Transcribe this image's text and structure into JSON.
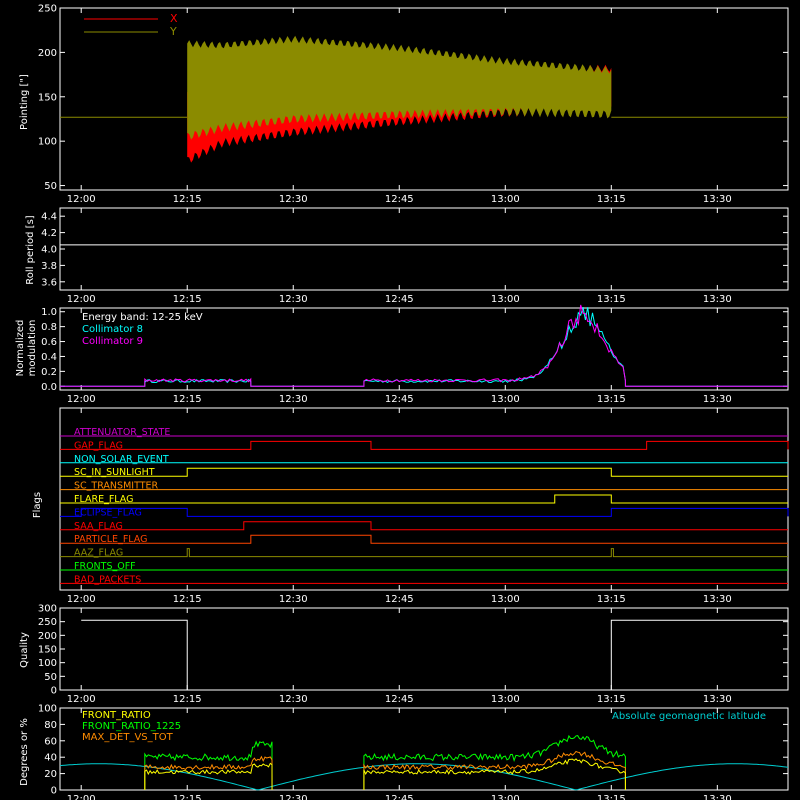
{
  "time_ticks": [
    "12:00",
    "12:15",
    "12:30",
    "12:45",
    "13:00",
    "13:15",
    "13:30"
  ],
  "colors": {
    "axis": "#ffffff",
    "red": "#ff0000",
    "olive": "#8b8b00",
    "cyan": "#00ffff",
    "magenta": "#ff00ff",
    "green": "#00ff00",
    "yellow": "#ffff00",
    "orange": "#ff8c00",
    "blue": "#0000ff",
    "teal": "#00ced1"
  },
  "chart_data": [
    {
      "id": "pointing",
      "type": "line",
      "ylabel": "Pointing [\"]",
      "ylim": [
        45,
        250
      ],
      "yticks": [
        50,
        100,
        150,
        200,
        250
      ],
      "legend_position": "top-left",
      "series": [
        {
          "name": "X",
          "color": "#ff0000",
          "baseline": 127,
          "active_window": [
            "12:15",
            "13:15"
          ],
          "envelope_time": [
            "12:15",
            "12:20",
            "12:30",
            "12:45",
            "13:00",
            "13:15"
          ],
          "envelope_low": [
            78,
            98,
            110,
            122,
            132,
            135
          ],
          "envelope_high": [
            155,
            160,
            170,
            178,
            182,
            182
          ]
        },
        {
          "name": "Y",
          "color": "#8b8b00",
          "baseline": 127,
          "active_window": [
            "12:15",
            "13:15"
          ],
          "envelope_time": [
            "12:15",
            "12:20",
            "12:30",
            "12:45",
            "13:00",
            "13:15"
          ],
          "envelope_low": [
            105,
            115,
            125,
            130,
            133,
            130
          ],
          "envelope_high": [
            210,
            208,
            215,
            205,
            190,
            180
          ]
        }
      ]
    },
    {
      "id": "roll",
      "type": "line",
      "ylabel": "Roll period [s]",
      "ylim": [
        3.5,
        4.5
      ],
      "yticks": [
        3.6,
        3.8,
        4.0,
        4.2,
        4.4
      ],
      "series": [
        {
          "name": "",
          "color": "#ffffff",
          "value": 4.05
        }
      ]
    },
    {
      "id": "modulation",
      "type": "line",
      "ylabel_lines": [
        "Normalized",
        "modulation"
      ],
      "ylim": [
        -0.05,
        1.05
      ],
      "yticks": [
        0.0,
        0.2,
        0.4,
        0.6,
        0.8,
        1.0
      ],
      "annotation": "Energy band: 12-25 keV",
      "legend_position": "top-left",
      "series": [
        {
          "name": "Collimator 8",
          "color": "#00ffff"
        },
        {
          "name": "Collimator 9",
          "color": "#ff00ff"
        }
      ],
      "active_windows": [
        [
          "12:09",
          "12:24"
        ],
        [
          "12:40",
          "13:17"
        ]
      ],
      "base_level": 0.07,
      "peak": {
        "time": "13:11",
        "value": 1.0
      }
    },
    {
      "id": "flags",
      "type": "line",
      "ylabel": "Flags",
      "series": [
        {
          "name": "ATTENUATOR_STATE",
          "color": "#cc00cc",
          "segments": []
        },
        {
          "name": "GAP_FLAG",
          "color": "#ff0000",
          "segments": [
            [
              "12:24",
              "12:41"
            ],
            [
              "13:20",
              "13:40"
            ]
          ]
        },
        {
          "name": "NON_SOLAR_EVENT",
          "color": "#00ffff",
          "segments": []
        },
        {
          "name": "SC_IN_SUNLIGHT",
          "color": "#ffff00",
          "segments": [
            [
              "12:15",
              "13:15"
            ]
          ]
        },
        {
          "name": "SC_TRANSMITTER",
          "color": "#ff8c00",
          "segments": []
        },
        {
          "name": "FLARE_FLAG",
          "color": "#ffff00",
          "segments": [
            [
              "13:07",
              "13:15"
            ]
          ]
        },
        {
          "name": "ECLIPSE_FLAG",
          "color": "#0000ff",
          "segments": [
            [
              "12:00",
              "12:15"
            ],
            [
              "13:15",
              "13:40"
            ]
          ]
        },
        {
          "name": "SAA_FLAG",
          "color": "#ff0000",
          "segments": [
            [
              "12:23",
              "12:41"
            ]
          ]
        },
        {
          "name": "PARTICLE_FLAG",
          "color": "#ff4500",
          "segments": [
            [
              "12:24",
              "12:41"
            ]
          ]
        },
        {
          "name": "AAZ_FLAG",
          "color": "#8b8b00",
          "segments": [
            [
              "12:15",
              "12:15.3"
            ],
            [
              "13:15",
              "13:15.3"
            ]
          ]
        },
        {
          "name": "FRONTS_OFF",
          "color": "#00ff00",
          "segments": []
        },
        {
          "name": "BAD_PACKETS",
          "color": "#ff0000",
          "segments": []
        }
      ]
    },
    {
      "id": "quality",
      "type": "line",
      "ylabel": "Quality",
      "ylim": [
        0,
        300
      ],
      "yticks": [
        0,
        50,
        100,
        150,
        200,
        250,
        300
      ],
      "series": [
        {
          "name": "",
          "color": "#ffffff",
          "steps": [
            [
              "12:00",
              255
            ],
            [
              "12:15",
              0
            ],
            [
              "13:15",
              255
            ],
            [
              "13:40",
              255
            ]
          ]
        }
      ]
    },
    {
      "id": "ratios",
      "type": "line",
      "ylabel": "Degrees or %",
      "ylim": [
        0,
        100
      ],
      "yticks": [
        0,
        20,
        40,
        60,
        80,
        100
      ],
      "legend_position": "top-left",
      "series": [
        {
          "name": "FRONT_RATIO",
          "color": "#ffff00"
        },
        {
          "name": "FRONT_RATIO_1225",
          "color": "#00ff00"
        },
        {
          "name": "MAX_DET_VS_TOT",
          "color": "#ff8c00"
        },
        {
          "name": "Absolute geomagnetic latitude",
          "color": "#00ced1"
        }
      ],
      "active_windows": [
        [
          "12:09",
          "12:27"
        ],
        [
          "12:40",
          "13:17"
        ]
      ]
    }
  ]
}
